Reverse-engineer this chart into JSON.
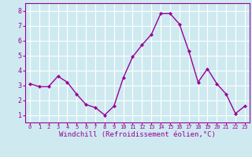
{
  "x": [
    0,
    1,
    2,
    3,
    4,
    5,
    6,
    7,
    8,
    9,
    10,
    11,
    12,
    13,
    14,
    15,
    16,
    17,
    18,
    19,
    20,
    21,
    22,
    23
  ],
  "y": [
    3.1,
    2.9,
    2.9,
    3.6,
    3.2,
    2.4,
    1.7,
    1.5,
    1.0,
    1.6,
    3.5,
    4.9,
    5.7,
    6.4,
    7.8,
    7.8,
    7.1,
    5.3,
    3.2,
    4.1,
    3.1,
    2.4,
    1.1,
    1.6
  ],
  "line_color": "#990099",
  "marker": "D",
  "marker_size": 2.0,
  "linewidth": 1.0,
  "xlabel": "Windchill (Refroidissement éolien,°C)",
  "xlabel_fontsize": 6.5,
  "xlim": [
    -0.5,
    23.5
  ],
  "ylim": [
    0.5,
    8.5
  ],
  "yticks": [
    1,
    2,
    3,
    4,
    5,
    6,
    7,
    8
  ],
  "xticks": [
    0,
    1,
    2,
    3,
    4,
    5,
    6,
    7,
    8,
    9,
    10,
    11,
    12,
    13,
    14,
    15,
    16,
    17,
    18,
    19,
    20,
    21,
    22,
    23
  ],
  "bg_color": "#ceeaf0",
  "grid_color": "#ffffff",
  "tick_color": "#990099",
  "tick_label_color": "#990099",
  "xlabel_color": "#990099",
  "spine_color": "#990099"
}
